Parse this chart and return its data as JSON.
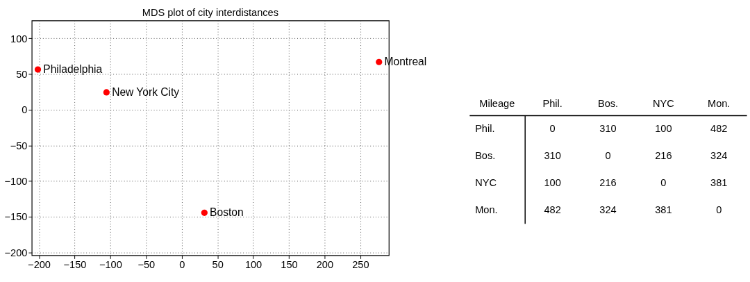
{
  "chart_data": [
    {
      "type": "scatter",
      "title": "MDS plot of city interdistances",
      "x": [
        -201.5,
        -105.4,
        31.7,
        276.2
      ],
      "values": [
        56.4,
        24.4,
        -144.4,
        66.9
      ],
      "color": "#ff0000",
      "annotations": [
        {
          "text": "Philadelphia",
          "x": -201.5,
          "y": 56.4
        },
        {
          "text": "New York City",
          "x": -105.4,
          "y": 24.4
        },
        {
          "text": "Boston",
          "x": 31.7,
          "y": -144.4
        },
        {
          "text": "Montreal",
          "x": 276.2,
          "y": 66.9
        }
      ],
      "xlim": [
        -210,
        290
      ],
      "ylim": [
        -204,
        125
      ],
      "xticks": [
        -200,
        -150,
        -100,
        -50,
        0,
        50,
        100,
        150,
        200,
        250
      ],
      "yticks": [
        -200,
        -150,
        -100,
        -50,
        0,
        50,
        100
      ],
      "grid": true,
      "marker": "circle"
    },
    {
      "type": "heatmap",
      "title": "Mileage",
      "categories": [
        "Phil.",
        "Bos.",
        "NYC",
        "Mon."
      ],
      "y_categories": [
        "Phil.",
        "Bos.",
        "NYC",
        "Mon."
      ],
      "cells": [
        [
          0,
          310,
          100,
          482
        ],
        [
          310,
          0,
          216,
          324
        ],
        [
          100,
          216,
          0,
          381
        ],
        [
          482,
          324,
          381,
          0
        ]
      ],
      "data_labels": true
    }
  ]
}
